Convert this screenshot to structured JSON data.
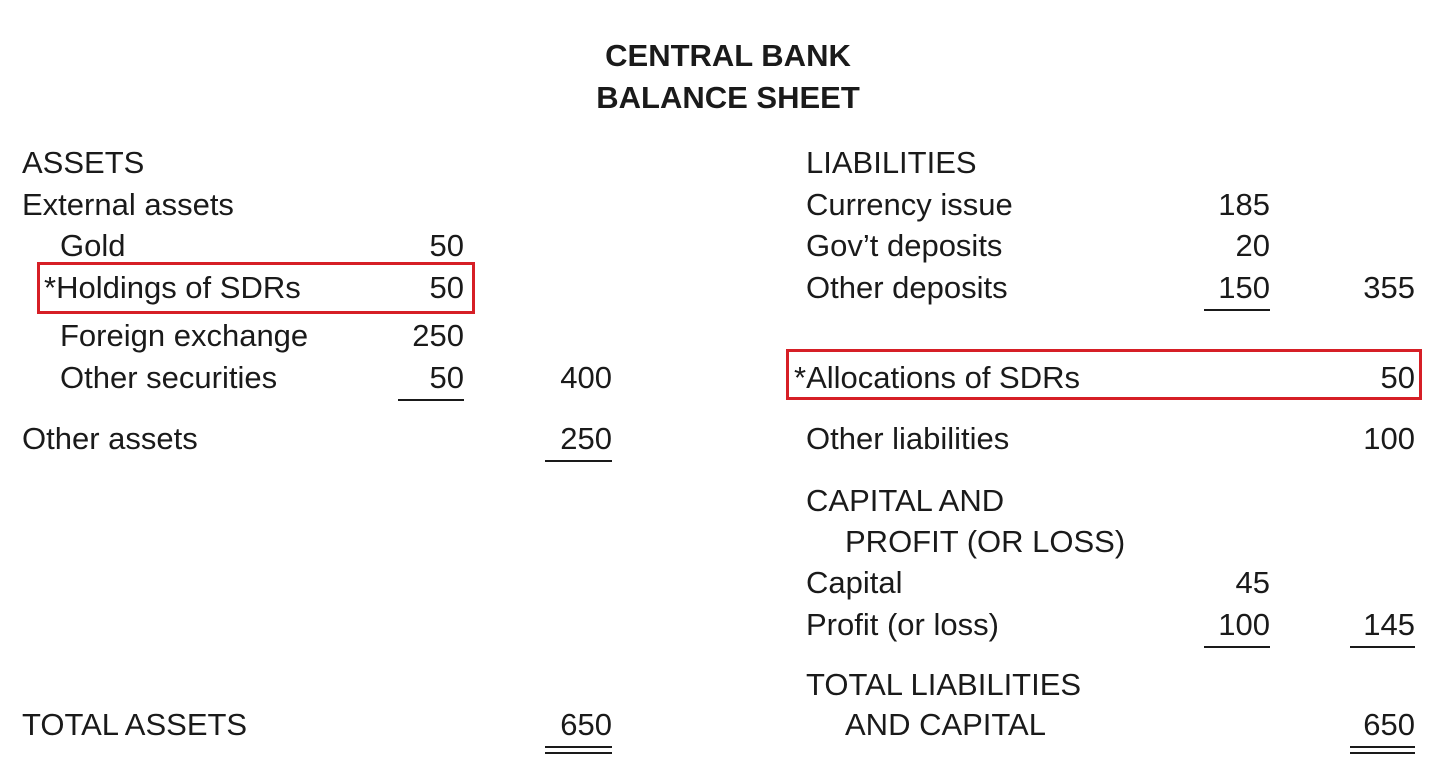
{
  "title_line1": "CENTRAL BANK",
  "title_line2": "BALANCE SHEET",
  "assets": {
    "heading": "ASSETS",
    "external_assets": "External assets",
    "gold": {
      "label": "Gold",
      "value": "50"
    },
    "sdr_holdings": {
      "label": "*Holdings of SDRs",
      "value": "50"
    },
    "foreign_exchange": {
      "label": "Foreign exchange",
      "value": "250"
    },
    "other_securities": {
      "label": "Other securities",
      "value": "50",
      "subtotal": "400"
    },
    "other_assets": {
      "label": "Other assets",
      "value": "250"
    },
    "total": {
      "label": "TOTAL ASSETS",
      "value": "650"
    }
  },
  "liabilities": {
    "heading": "LIABILITIES",
    "currency_issue": {
      "label": "Currency issue",
      "value": "185"
    },
    "govt_deposits": {
      "label": "Gov’t deposits",
      "value": "20"
    },
    "other_deposits": {
      "label": "Other deposits",
      "value": "150",
      "subtotal": "355"
    },
    "sdr_allocations": {
      "label": "*Allocations of SDRs",
      "value": "50"
    },
    "other_liabilities": {
      "label": "Other liabilities",
      "value": "100"
    },
    "capital_heading_1": "CAPITAL AND",
    "capital_heading_2": "PROFIT (OR LOSS)",
    "capital": {
      "label": "Capital",
      "value": "45"
    },
    "profit": {
      "label": "Profit (or loss)",
      "value": "100",
      "subtotal": "145"
    },
    "total_line1": "TOTAL LIABILITIES",
    "total_line2": "AND CAPITAL",
    "total_value": "650"
  },
  "highlight_color": "#d61f26"
}
